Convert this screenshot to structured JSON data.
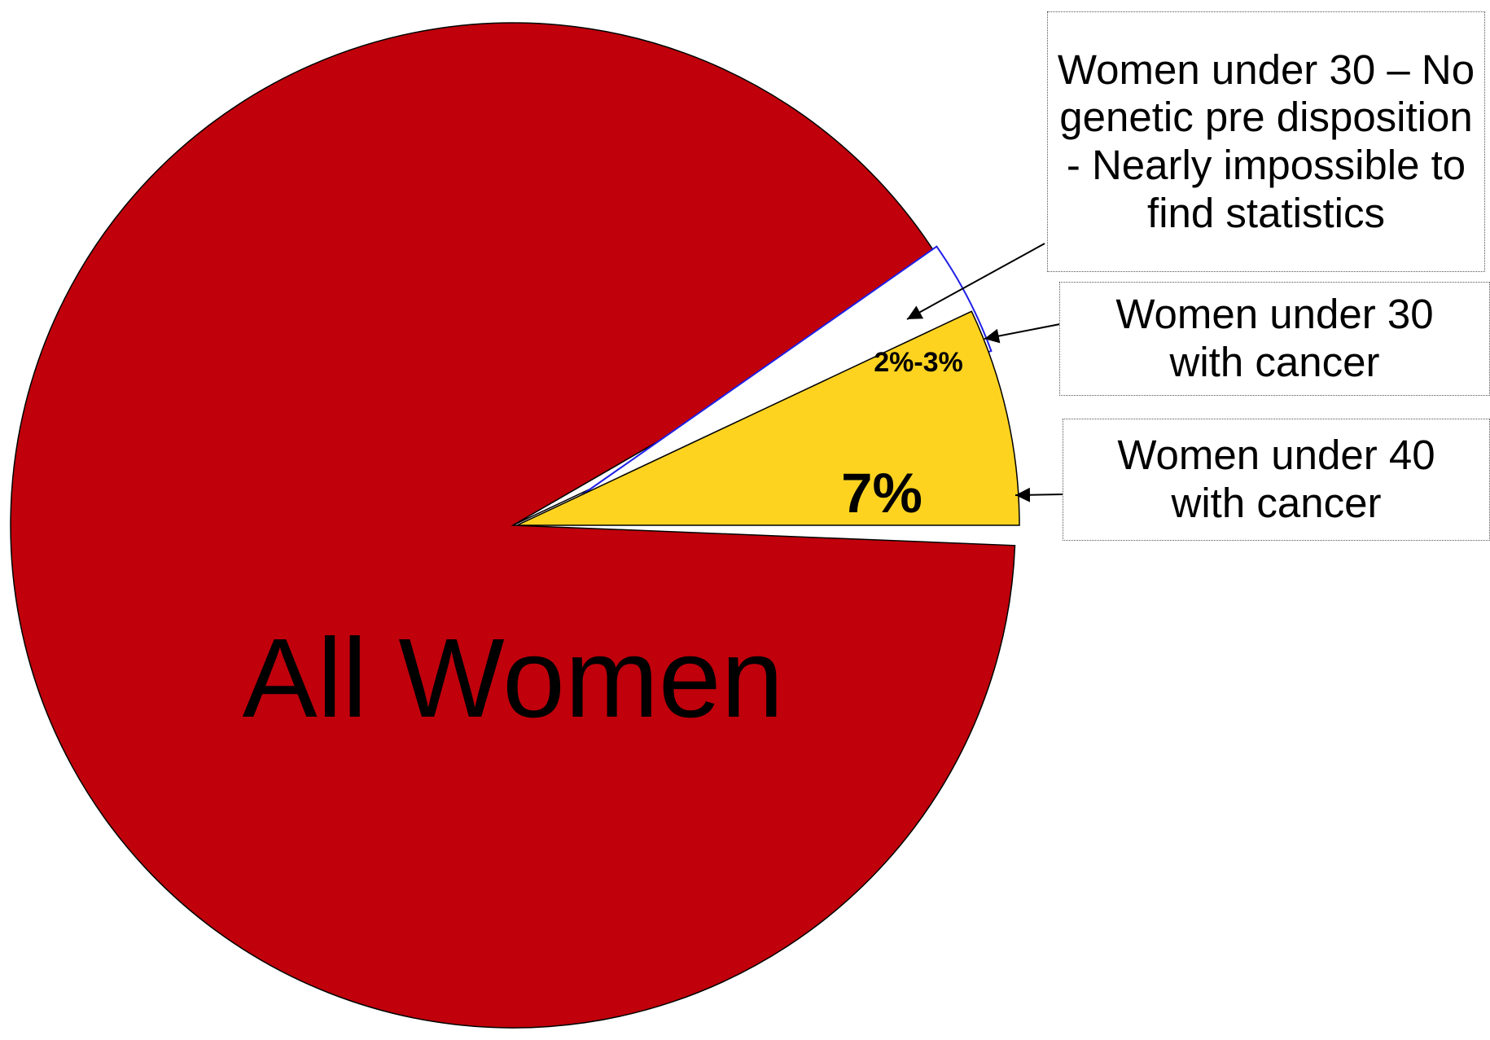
{
  "chart_data": {
    "type": "pie",
    "title": "",
    "slices": [
      {
        "label": "All Women",
        "value": 90,
        "color": "#C0000B"
      },
      {
        "label": "7%",
        "value": 7,
        "color": "#FDD320"
      },
      {
        "label": "2%-3%",
        "value": 3,
        "color": "#FFFFFF",
        "stroke": "#1F1FE6"
      }
    ],
    "annotations": [
      {
        "text": "Women under 30 – No genetic pre disposition - Nearly impossible to find statistics"
      },
      {
        "text": "Women under 30 with cancer"
      },
      {
        "text": "Women under 40 with cancer"
      }
    ]
  }
}
